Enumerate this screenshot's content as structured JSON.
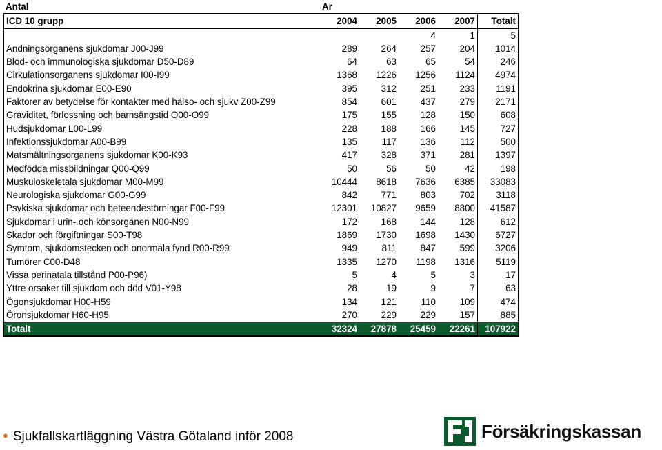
{
  "sheet": {
    "top_left_label": "Antal",
    "year_group_label": "Ar",
    "header": [
      "ICD 10 grupp",
      "2004",
      "2005",
      "2006",
      "2007",
      "Totalt"
    ],
    "rows": [
      [
        "",
        "",
        "",
        "4",
        "1",
        "5"
      ],
      [
        "Andningsorganens sjukdomar J00-J99",
        "289",
        "264",
        "257",
        "204",
        "1014"
      ],
      [
        "Blod- och immunologiska sjukdomar D50-D89",
        "64",
        "63",
        "65",
        "54",
        "246"
      ],
      [
        "Cirkulationsorganens sjukdomar I00-I99",
        "1368",
        "1226",
        "1256",
        "1124",
        "4974"
      ],
      [
        "Endokrina sjukdomar E00-E90",
        "395",
        "312",
        "251",
        "233",
        "1191"
      ],
      [
        "Faktorer av betydelse för kontakter med hälso- och sjukv Z00-Z99",
        "854",
        "601",
        "437",
        "279",
        "2171"
      ],
      [
        "Graviditet, förlossning och barnsängstid O00-O99",
        "175",
        "155",
        "128",
        "150",
        "608"
      ],
      [
        "Hudsjukdomar L00-L99",
        "228",
        "188",
        "166",
        "145",
        "727"
      ],
      [
        "Infektionssjukdomar A00-B99",
        "135",
        "117",
        "136",
        "112",
        "500"
      ],
      [
        "Matsmältningsorganens sjukdomar K00-K93",
        "417",
        "328",
        "371",
        "281",
        "1397"
      ],
      [
        "Medfödda missbildningar Q00-Q99",
        "50",
        "56",
        "50",
        "42",
        "198"
      ],
      [
        "Muskuloskeletala sjukdomar M00-M99",
        "10444",
        "8618",
        "7636",
        "6385",
        "33083"
      ],
      [
        "Neurologiska sjukdomar G00-G99",
        "842",
        "771",
        "803",
        "702",
        "3118"
      ],
      [
        "Psykiska sjukdomar och beteendestörningar F00-F99",
        "12301",
        "10827",
        "9659",
        "8800",
        "41587"
      ],
      [
        "Sjukdomar i urin- och könsorganen N00-N99",
        "172",
        "168",
        "144",
        "128",
        "612"
      ],
      [
        "Skador och förgiftningar S00-T98",
        "1869",
        "1730",
        "1698",
        "1430",
        "6727"
      ],
      [
        "Symtom, sjukdomstecken och onormala fynd R00-R99",
        "949",
        "811",
        "847",
        "599",
        "3206"
      ],
      [
        "Tumörer C00-D48",
        "1335",
        "1270",
        "1198",
        "1316",
        "5119"
      ],
      [
        "Vissa perinatala tillstånd P00-P96)",
        "5",
        "4",
        "5",
        "3",
        "17"
      ],
      [
        "Yttre orsaker till sjukdom och död V01-Y98",
        "28",
        "19",
        "9",
        "7",
        "63"
      ],
      [
        "Ögonsjukdomar H00-H59",
        "134",
        "121",
        "110",
        "109",
        "474"
      ],
      [
        "Öronsjukdomar H60-H95",
        "270",
        "229",
        "229",
        "157",
        "885"
      ]
    ],
    "total_row": [
      "Totalt",
      "32324",
      "27878",
      "25459",
      "22261",
      "107922"
    ]
  },
  "footer": {
    "bullet_text": "Sjukfallskartläggning Västra Götaland inför 2008"
  },
  "logo": {
    "text": "Försäkringskassan",
    "icon": "forsakringskassan-logo-icon",
    "brand_color": "#0a5a2c",
    "bullet_color": "#e36c0a"
  }
}
